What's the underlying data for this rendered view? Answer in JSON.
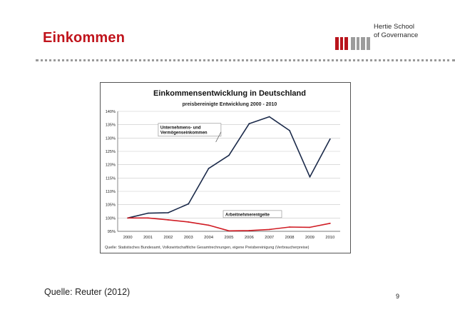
{
  "header": {
    "logo_line1": "Hertie School",
    "logo_line2": "of Governance",
    "title": "Einkommen"
  },
  "footer": {
    "source": "Quelle: Reuter (2012)",
    "page_number": "9"
  },
  "colors": {
    "accent": "#c0141c",
    "series_navy": "#1b2a4a",
    "series_red": "#d01c24",
    "grid": "#c8c8c8"
  },
  "chart_data": {
    "type": "line",
    "title": "Einkommensentwicklung in Deutschland",
    "subtitle": "preisbereinigte Entwicklung 2000 - 2010",
    "categories": [
      "2000",
      "2001",
      "2002",
      "2003",
      "2004",
      "2005",
      "2006",
      "2007",
      "2008",
      "2009",
      "2010"
    ],
    "ylim": [
      95,
      140
    ],
    "yticks": [
      95,
      100,
      105,
      110,
      115,
      120,
      125,
      130,
      135,
      140
    ],
    "ytick_labels": [
      "95%",
      "100%",
      "105%",
      "110%",
      "115%",
      "120%",
      "125%",
      "130%",
      "135%",
      "140%"
    ],
    "grid": true,
    "series": [
      {
        "name": "Unternehmens- und Vermögenseinkommen",
        "label_lines": [
          "Unternehmens- und",
          "Vermögenseinkommen"
        ],
        "color": "#1b2a4a",
        "values": [
          100,
          101.8,
          102,
          105.3,
          118.6,
          123.5,
          135.4,
          138.0,
          132.8,
          115.4,
          129.6
        ]
      },
      {
        "name": "Arbeitnehmerentgelte",
        "label_lines": [
          "Arbeitnehmerentgelte"
        ],
        "color": "#d01c24",
        "values": [
          100,
          100,
          99.3,
          98.5,
          97.3,
          95.2,
          95.3,
          95.7,
          96.6,
          96.5,
          98.0
        ]
      }
    ],
    "source": "Quelle: Statistisches Bundesamt, Volkswirtschaftliche Gesamtrechnungen, eigene Preisbereinigung (Verbraucherpreise)"
  }
}
